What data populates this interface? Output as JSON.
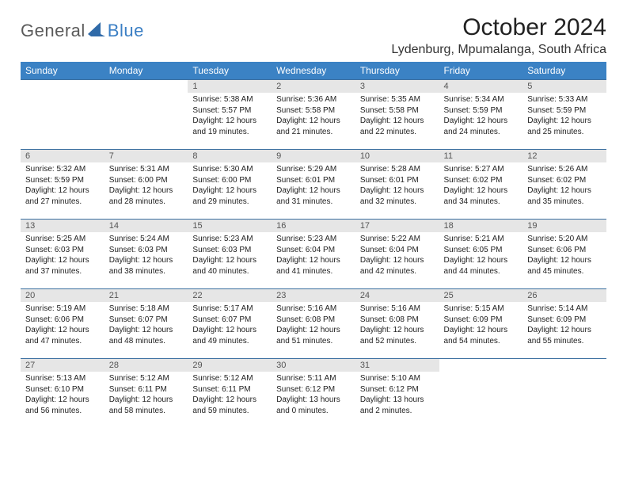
{
  "brand": {
    "general": "General",
    "blue": "Blue"
  },
  "title": "October 2024",
  "location": "Lydenburg, Mpumalanga, South Africa",
  "colors": {
    "header_bg": "#3b82c4",
    "header_text": "#ffffff",
    "daynum_bg": "#e6e6e6",
    "row_border": "#3b6fa0",
    "logo_general": "#5b5b5b",
    "logo_blue": "#3b7fc4"
  },
  "day_headers": [
    "Sunday",
    "Monday",
    "Tuesday",
    "Wednesday",
    "Thursday",
    "Friday",
    "Saturday"
  ],
  "weeks": [
    [
      {
        "n": "",
        "sunrise": "",
        "sunset": "",
        "daylight1": "",
        "daylight2": "",
        "empty": true
      },
      {
        "n": "",
        "sunrise": "",
        "sunset": "",
        "daylight1": "",
        "daylight2": "",
        "empty": true
      },
      {
        "n": "1",
        "sunrise": "Sunrise: 5:38 AM",
        "sunset": "Sunset: 5:57 PM",
        "daylight1": "Daylight: 12 hours",
        "daylight2": "and 19 minutes."
      },
      {
        "n": "2",
        "sunrise": "Sunrise: 5:36 AM",
        "sunset": "Sunset: 5:58 PM",
        "daylight1": "Daylight: 12 hours",
        "daylight2": "and 21 minutes."
      },
      {
        "n": "3",
        "sunrise": "Sunrise: 5:35 AM",
        "sunset": "Sunset: 5:58 PM",
        "daylight1": "Daylight: 12 hours",
        "daylight2": "and 22 minutes."
      },
      {
        "n": "4",
        "sunrise": "Sunrise: 5:34 AM",
        "sunset": "Sunset: 5:59 PM",
        "daylight1": "Daylight: 12 hours",
        "daylight2": "and 24 minutes."
      },
      {
        "n": "5",
        "sunrise": "Sunrise: 5:33 AM",
        "sunset": "Sunset: 5:59 PM",
        "daylight1": "Daylight: 12 hours",
        "daylight2": "and 25 minutes."
      }
    ],
    [
      {
        "n": "6",
        "sunrise": "Sunrise: 5:32 AM",
        "sunset": "Sunset: 5:59 PM",
        "daylight1": "Daylight: 12 hours",
        "daylight2": "and 27 minutes."
      },
      {
        "n": "7",
        "sunrise": "Sunrise: 5:31 AM",
        "sunset": "Sunset: 6:00 PM",
        "daylight1": "Daylight: 12 hours",
        "daylight2": "and 28 minutes."
      },
      {
        "n": "8",
        "sunrise": "Sunrise: 5:30 AM",
        "sunset": "Sunset: 6:00 PM",
        "daylight1": "Daylight: 12 hours",
        "daylight2": "and 29 minutes."
      },
      {
        "n": "9",
        "sunrise": "Sunrise: 5:29 AM",
        "sunset": "Sunset: 6:01 PM",
        "daylight1": "Daylight: 12 hours",
        "daylight2": "and 31 minutes."
      },
      {
        "n": "10",
        "sunrise": "Sunrise: 5:28 AM",
        "sunset": "Sunset: 6:01 PM",
        "daylight1": "Daylight: 12 hours",
        "daylight2": "and 32 minutes."
      },
      {
        "n": "11",
        "sunrise": "Sunrise: 5:27 AM",
        "sunset": "Sunset: 6:02 PM",
        "daylight1": "Daylight: 12 hours",
        "daylight2": "and 34 minutes."
      },
      {
        "n": "12",
        "sunrise": "Sunrise: 5:26 AM",
        "sunset": "Sunset: 6:02 PM",
        "daylight1": "Daylight: 12 hours",
        "daylight2": "and 35 minutes."
      }
    ],
    [
      {
        "n": "13",
        "sunrise": "Sunrise: 5:25 AM",
        "sunset": "Sunset: 6:03 PM",
        "daylight1": "Daylight: 12 hours",
        "daylight2": "and 37 minutes."
      },
      {
        "n": "14",
        "sunrise": "Sunrise: 5:24 AM",
        "sunset": "Sunset: 6:03 PM",
        "daylight1": "Daylight: 12 hours",
        "daylight2": "and 38 minutes."
      },
      {
        "n": "15",
        "sunrise": "Sunrise: 5:23 AM",
        "sunset": "Sunset: 6:03 PM",
        "daylight1": "Daylight: 12 hours",
        "daylight2": "and 40 minutes."
      },
      {
        "n": "16",
        "sunrise": "Sunrise: 5:23 AM",
        "sunset": "Sunset: 6:04 PM",
        "daylight1": "Daylight: 12 hours",
        "daylight2": "and 41 minutes."
      },
      {
        "n": "17",
        "sunrise": "Sunrise: 5:22 AM",
        "sunset": "Sunset: 6:04 PM",
        "daylight1": "Daylight: 12 hours",
        "daylight2": "and 42 minutes."
      },
      {
        "n": "18",
        "sunrise": "Sunrise: 5:21 AM",
        "sunset": "Sunset: 6:05 PM",
        "daylight1": "Daylight: 12 hours",
        "daylight2": "and 44 minutes."
      },
      {
        "n": "19",
        "sunrise": "Sunrise: 5:20 AM",
        "sunset": "Sunset: 6:06 PM",
        "daylight1": "Daylight: 12 hours",
        "daylight2": "and 45 minutes."
      }
    ],
    [
      {
        "n": "20",
        "sunrise": "Sunrise: 5:19 AM",
        "sunset": "Sunset: 6:06 PM",
        "daylight1": "Daylight: 12 hours",
        "daylight2": "and 47 minutes."
      },
      {
        "n": "21",
        "sunrise": "Sunrise: 5:18 AM",
        "sunset": "Sunset: 6:07 PM",
        "daylight1": "Daylight: 12 hours",
        "daylight2": "and 48 minutes."
      },
      {
        "n": "22",
        "sunrise": "Sunrise: 5:17 AM",
        "sunset": "Sunset: 6:07 PM",
        "daylight1": "Daylight: 12 hours",
        "daylight2": "and 49 minutes."
      },
      {
        "n": "23",
        "sunrise": "Sunrise: 5:16 AM",
        "sunset": "Sunset: 6:08 PM",
        "daylight1": "Daylight: 12 hours",
        "daylight2": "and 51 minutes."
      },
      {
        "n": "24",
        "sunrise": "Sunrise: 5:16 AM",
        "sunset": "Sunset: 6:08 PM",
        "daylight1": "Daylight: 12 hours",
        "daylight2": "and 52 minutes."
      },
      {
        "n": "25",
        "sunrise": "Sunrise: 5:15 AM",
        "sunset": "Sunset: 6:09 PM",
        "daylight1": "Daylight: 12 hours",
        "daylight2": "and 54 minutes."
      },
      {
        "n": "26",
        "sunrise": "Sunrise: 5:14 AM",
        "sunset": "Sunset: 6:09 PM",
        "daylight1": "Daylight: 12 hours",
        "daylight2": "and 55 minutes."
      }
    ],
    [
      {
        "n": "27",
        "sunrise": "Sunrise: 5:13 AM",
        "sunset": "Sunset: 6:10 PM",
        "daylight1": "Daylight: 12 hours",
        "daylight2": "and 56 minutes."
      },
      {
        "n": "28",
        "sunrise": "Sunrise: 5:12 AM",
        "sunset": "Sunset: 6:11 PM",
        "daylight1": "Daylight: 12 hours",
        "daylight2": "and 58 minutes."
      },
      {
        "n": "29",
        "sunrise": "Sunrise: 5:12 AM",
        "sunset": "Sunset: 6:11 PM",
        "daylight1": "Daylight: 12 hours",
        "daylight2": "and 59 minutes."
      },
      {
        "n": "30",
        "sunrise": "Sunrise: 5:11 AM",
        "sunset": "Sunset: 6:12 PM",
        "daylight1": "Daylight: 13 hours",
        "daylight2": "and 0 minutes."
      },
      {
        "n": "31",
        "sunrise": "Sunrise: 5:10 AM",
        "sunset": "Sunset: 6:12 PM",
        "daylight1": "Daylight: 13 hours",
        "daylight2": "and 2 minutes."
      },
      {
        "n": "",
        "sunrise": "",
        "sunset": "",
        "daylight1": "",
        "daylight2": "",
        "empty": true
      },
      {
        "n": "",
        "sunrise": "",
        "sunset": "",
        "daylight1": "",
        "daylight2": "",
        "empty": true
      }
    ]
  ]
}
